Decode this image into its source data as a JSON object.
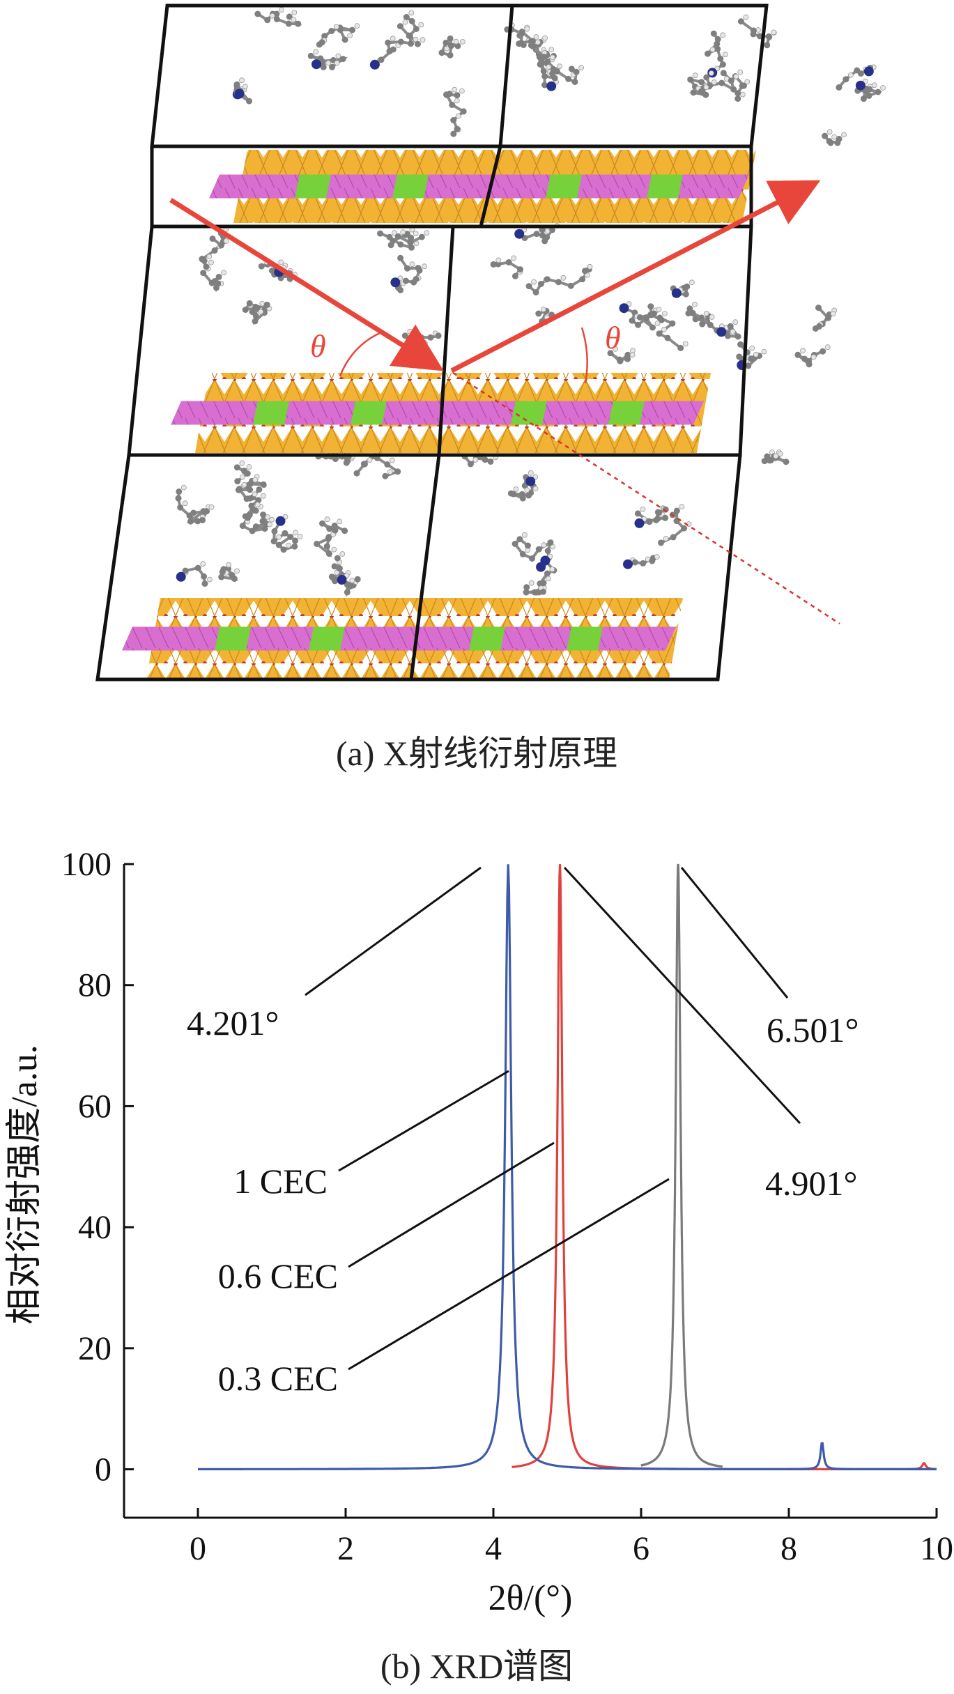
{
  "panel_a": {
    "caption": "(a) X射线衍射原理",
    "angle_symbol": "θ",
    "colors": {
      "frame": "#111111",
      "beam": "#e8463a",
      "tetrahedra": "#f2b233",
      "octahedra": "#d86fd0",
      "substitution": "#76d13a",
      "organic_chain": "#7f7f7f",
      "nitrogen": "#28318a"
    }
  },
  "panel_b": {
    "caption": "(b) XRD谱图",
    "colors": {
      "axis": "#111111",
      "s1cec": "#3d5ba8",
      "s06cec": "#e0413d",
      "s03cec": "#7a7a7a"
    }
  },
  "chart_data": {
    "type": "line",
    "xlabel": "2θ/(°)",
    "ylabel": "相对衍射强度/a.u.",
    "xlim": [
      -1,
      10
    ],
    "ylim": [
      -8,
      100
    ],
    "xticks": [
      "0",
      "2",
      "4",
      "6",
      "8",
      "10"
    ],
    "yticks": [
      "0",
      "20",
      "40",
      "60",
      "80",
      "100"
    ],
    "grid": false,
    "series": [
      {
        "name": "1 CEC",
        "color": "#3d5ba8",
        "peaks": [
          {
            "x": 4.201,
            "y": 100,
            "w": 0.05
          },
          {
            "x": 8.45,
            "y": 4.5,
            "w": 0.025
          }
        ],
        "x_range": [
          0,
          10
        ]
      },
      {
        "name": "0.6 CEC",
        "color": "#e0413d",
        "peaks": [
          {
            "x": 4.901,
            "y": 100,
            "w": 0.04
          },
          {
            "x": 9.83,
            "y": 1.0,
            "w": 0.03
          }
        ],
        "x_range": [
          4.25,
          10
        ]
      },
      {
        "name": "0.3 CEC",
        "color": "#7a7a7a",
        "peaks": [
          {
            "x": 6.501,
            "y": 100,
            "w": 0.04
          }
        ],
        "x_range": [
          6.0,
          7.1
        ]
      }
    ],
    "annotations": [
      {
        "text": "4.201°",
        "x": 4.201,
        "y": 100
      },
      {
        "text": "4.901°",
        "x": 4.901,
        "y": 100
      },
      {
        "text": "6.501°",
        "x": 6.501,
        "y": 100
      }
    ]
  }
}
